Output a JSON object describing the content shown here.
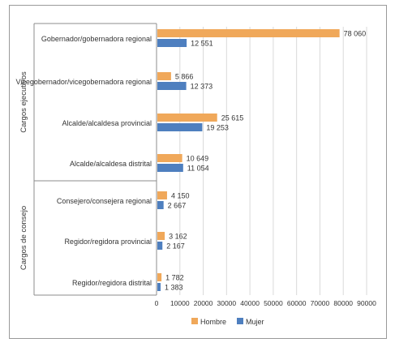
{
  "chart_data": {
    "type": "bar",
    "orientation": "horizontal",
    "groups": [
      {
        "label": "Cargos ejecutivos",
        "categories": [
          0,
          1,
          2,
          3
        ]
      },
      {
        "label": "Cargos de consejo",
        "categories": [
          4,
          5,
          6
        ]
      }
    ],
    "categories": [
      "Gobernador/gobernadora regional",
      "Vicegobernador/vicegobernadora regional",
      "Alcalde/alcaldesa provincial",
      "Alcalde/alcaldesa distrital",
      "Consejero/consejera regional",
      "Regidor/regidora provincial",
      "Regidor/regidora distrital"
    ],
    "series": [
      {
        "name": "Hombre",
        "color": "#F0A85A",
        "values": [
          78060,
          5866,
          25615,
          10649,
          4150,
          3162,
          1782
        ],
        "labels": [
          "78 060",
          "5 866",
          "25 615",
          "10 649",
          "4 150",
          "3 162",
          "1 782"
        ]
      },
      {
        "name": "Mujer",
        "color": "#4E7FBF",
        "values": [
          12551,
          12373,
          19253,
          11054,
          2667,
          2167,
          1383
        ],
        "labels": [
          "12 551",
          "12 373",
          "19 253",
          "11 054",
          "2 667",
          "2 167",
          "1 383"
        ]
      }
    ],
    "xlim": [
      0,
      90000
    ],
    "xticks": [
      0,
      10000,
      20000,
      30000,
      40000,
      50000,
      60000,
      70000,
      80000,
      90000
    ],
    "xtick_labels": [
      "0",
      "10000",
      "20000",
      "30000",
      "40000",
      "50000",
      "60000",
      "70000",
      "80000",
      "90000"
    ],
    "grid": "vertical",
    "legend": "bottom"
  }
}
